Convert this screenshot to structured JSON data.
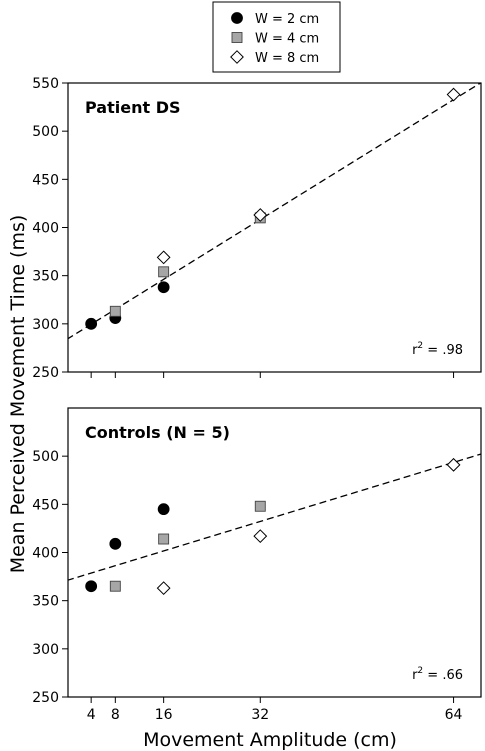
{
  "chart_data": {
    "type": "scatter",
    "ylabel": "Mean Perceived Movement Time (ms)",
    "xlabel": "Movement Amplitude (cm)",
    "x_ticks": [
      4,
      8,
      16,
      32,
      64
    ],
    "x_tick_labels": [
      "4",
      "8",
      "16",
      "32",
      "64"
    ],
    "xlim": [
      0,
      70
    ],
    "legend": {
      "placement": "top-center",
      "entries": [
        {
          "label": "W = 2 cm",
          "marker": "circle",
          "color": "#000000"
        },
        {
          "label": "W = 4 cm",
          "marker": "square",
          "color": "#a6a6a6"
        },
        {
          "label": "W = 8 cm",
          "marker": "diamond",
          "color": "#ffffff"
        }
      ]
    },
    "panels": [
      {
        "title": "Patient DS",
        "ylim": [
          250,
          550
        ],
        "y_ticks": [
          250,
          300,
          350,
          400,
          450,
          500,
          550
        ],
        "r2_prefix": "r",
        "r2_sup": "2",
        "r2_value": " = .98",
        "series": [
          {
            "name": "W = 2 cm",
            "x": [
              4,
              8,
              16
            ],
            "y": [
              300,
              306,
              338
            ]
          },
          {
            "name": "W = 4 cm",
            "x": [
              8,
              16,
              32
            ],
            "y": [
              313,
              354,
              410
            ]
          },
          {
            "name": "W = 8 cm",
            "x": [
              16,
              32,
              64
            ],
            "y": [
              369,
              413,
              538
            ]
          }
        ],
        "fit_line": {
          "x": [
            0,
            70
          ],
          "y": [
            284,
            556
          ]
        }
      },
      {
        "title": "Controls (N = 5)",
        "ylim": [
          250,
          550
        ],
        "y_ticks": [
          250,
          300,
          350,
          400,
          450,
          500
        ],
        "r2_prefix": "r",
        "r2_sup": "2",
        "r2_value": " = .66",
        "series": [
          {
            "name": "W = 2 cm",
            "x": [
              4,
              8,
              16
            ],
            "y": [
              365,
              409,
              445
            ]
          },
          {
            "name": "W = 4 cm",
            "x": [
              8,
              16,
              32
            ],
            "y": [
              365,
              414,
              448
            ]
          },
          {
            "name": "W = 8 cm",
            "x": [
              16,
              32,
              64
            ],
            "y": [
              363,
              417,
              491
            ]
          }
        ],
        "fit_line": {
          "x": [
            0,
            70
          ],
          "y": [
            371,
            505
          ]
        }
      }
    ]
  }
}
